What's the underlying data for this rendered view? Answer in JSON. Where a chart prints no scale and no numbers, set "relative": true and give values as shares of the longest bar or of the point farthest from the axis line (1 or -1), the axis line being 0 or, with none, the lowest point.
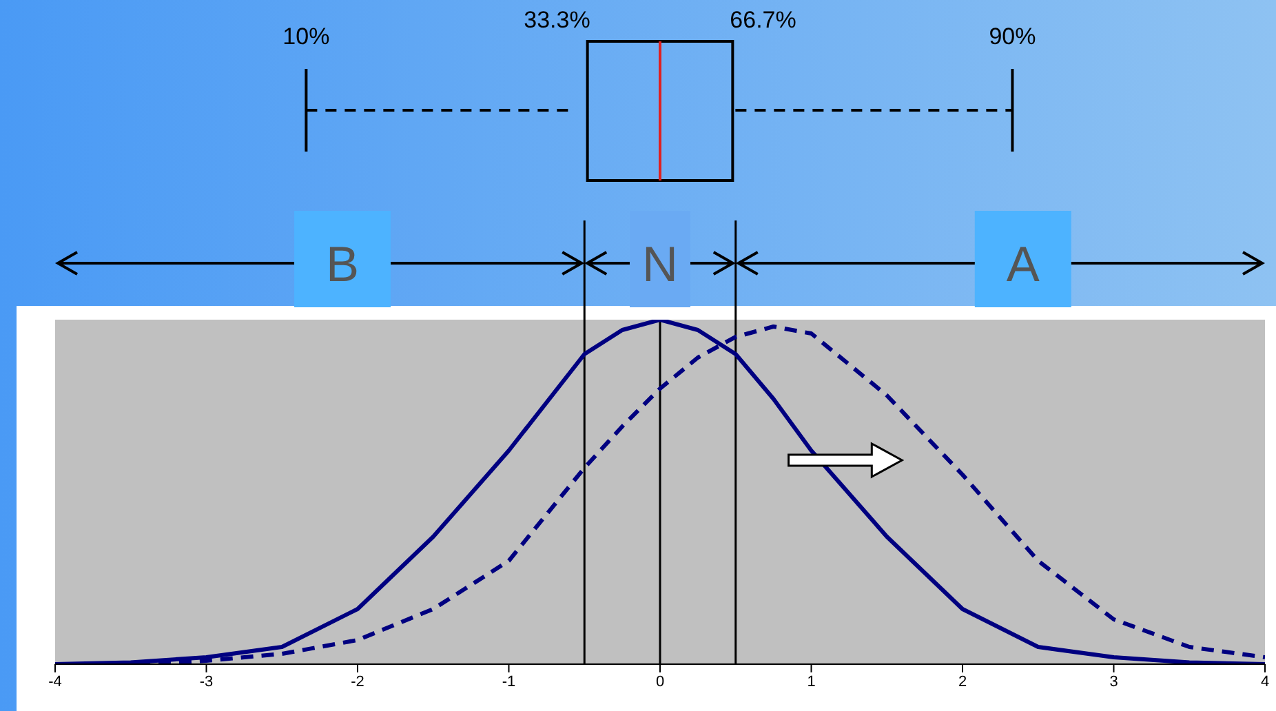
{
  "chart_data": {
    "type": "line",
    "relative": true,
    "x": [
      -4,
      -3.5,
      -3,
      -2.5,
      -2,
      -1.5,
      -1,
      -0.5,
      -0.25,
      0,
      0.25,
      0.5,
      0.75,
      1,
      1.5,
      2,
      2.5,
      3,
      3.5,
      4
    ],
    "series": [
      {
        "color": "#000080",
        "line_style": "solid",
        "values": [
          0,
          0.005,
          0.02,
          0.05,
          0.16,
          0.37,
          0.62,
          0.9,
          0.97,
          1,
          0.97,
          0.9,
          0.77,
          0.62,
          0.37,
          0.16,
          0.05,
          0.02,
          0.005,
          0
        ]
      },
      {
        "color": "#000080",
        "line_style": "dashed",
        "values": [
          0,
          0,
          0.01,
          0.03,
          0.07,
          0.16,
          0.3,
          0.57,
          0.69,
          0.8,
          0.89,
          0.95,
          0.98,
          0.96,
          0.78,
          0.55,
          0.3,
          0.13,
          0.05,
          0.02
        ]
      }
    ],
    "xlim": [
      -4,
      4
    ],
    "xticks": [
      -4,
      -3,
      -2,
      -1,
      0,
      1,
      2,
      3,
      4
    ],
    "tick_labels": "x",
    "marker": "none",
    "legend": false,
    "grid": false,
    "ref_lines": [
      {
        "axis": "x",
        "value": -0.5,
        "color": "#000000"
      },
      {
        "axis": "x",
        "value": 0,
        "color": "#000000"
      },
      {
        "axis": "x",
        "value": 0.5,
        "color": "#000000"
      }
    ],
    "annotations": [
      "10%",
      "33.3%",
      "66.7%",
      "90%",
      "B",
      "N",
      "A"
    ]
  }
}
